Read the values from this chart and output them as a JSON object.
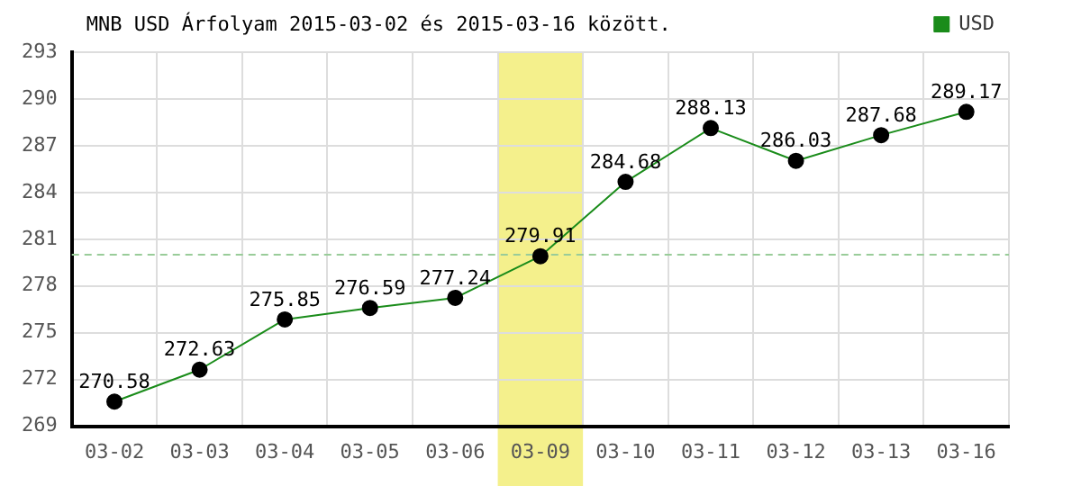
{
  "chart_data": {
    "type": "line",
    "title": "MNB USD Árfolyam 2015-03-02 és 2015-03-16 között.",
    "categories": [
      "03-02",
      "03-03",
      "03-04",
      "03-05",
      "03-06",
      "03-09",
      "03-10",
      "03-11",
      "03-12",
      "03-13",
      "03-16"
    ],
    "series": [
      {
        "name": "USD",
        "color": "#1a8c1a",
        "values": [
          270.58,
          272.63,
          275.85,
          276.59,
          277.24,
          279.91,
          284.68,
          288.13,
          286.03,
          287.68,
          289.17
        ]
      }
    ],
    "ylim": [
      269,
      293
    ],
    "yticks": [
      269,
      272,
      275,
      278,
      281,
      284,
      287,
      290,
      293
    ],
    "ref_lines": [
      {
        "axis": "y",
        "value": 280,
        "color": "#99cc99",
        "line_style": "dashed"
      }
    ],
    "bands": [
      {
        "axis": "x",
        "from": "03-09",
        "to": "03-09",
        "color": "#f4f08c"
      }
    ],
    "data_labels": true,
    "grid": true,
    "legend": "top right",
    "marker": "circle",
    "line_style": "solid"
  }
}
